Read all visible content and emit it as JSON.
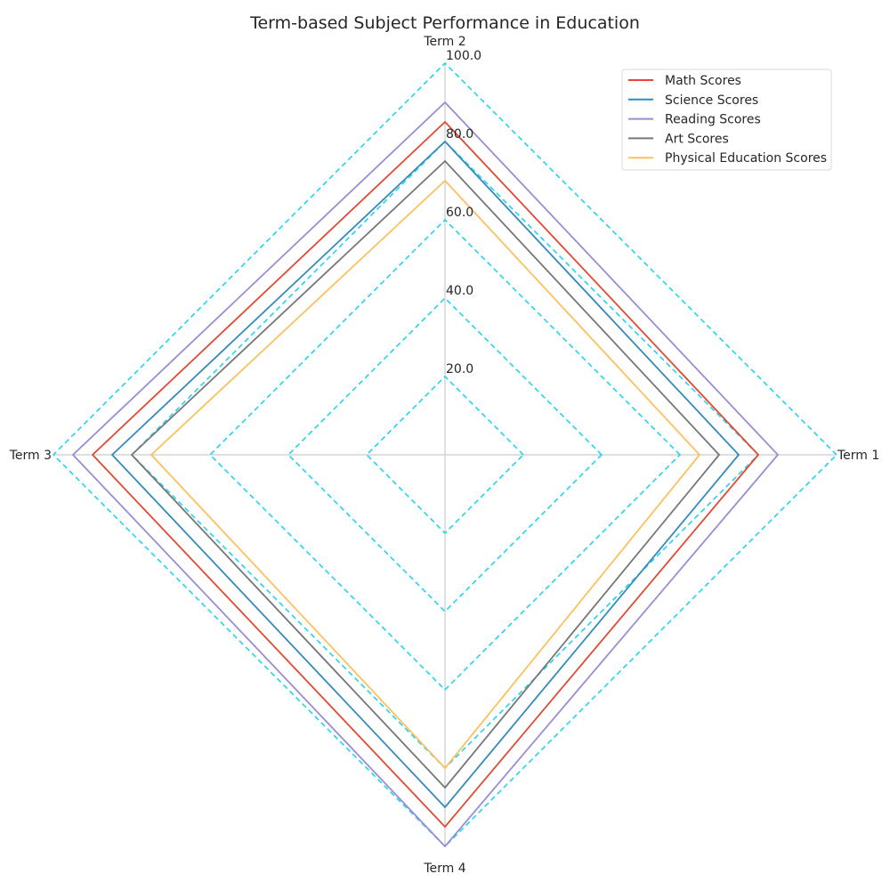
{
  "chart_data": {
    "type": "radar",
    "title": "Term-based Subject Performance in Education",
    "axes": [
      "Term 1",
      "Term 2",
      "Term 3",
      "Term 4"
    ],
    "rlim": [
      0,
      100
    ],
    "rticks": [
      20,
      40,
      60,
      80,
      100
    ],
    "rtick_labels": [
      "20.0",
      "40.0",
      "60.0",
      "80.0",
      "100.0"
    ],
    "grid_color": "#22d3ee",
    "grid_style": "dashed",
    "legend_position": "top-right",
    "series": [
      {
        "name": "Math Scores",
        "values": [
          80,
          85,
          90,
          95
        ],
        "color": "#e24a33"
      },
      {
        "name": "Science Scores",
        "values": [
          75,
          80,
          85,
          90
        ],
        "color": "#348abd"
      },
      {
        "name": "Reading Scores",
        "values": [
          85,
          90,
          95,
          100
        ],
        "color": "#988ed5"
      },
      {
        "name": "Art Scores",
        "values": [
          70,
          75,
          80,
          85
        ],
        "color": "#777777"
      },
      {
        "name": "Physical Education Scores",
        "values": [
          65,
          70,
          75,
          80
        ],
        "color": "#fbc15e"
      }
    ]
  }
}
